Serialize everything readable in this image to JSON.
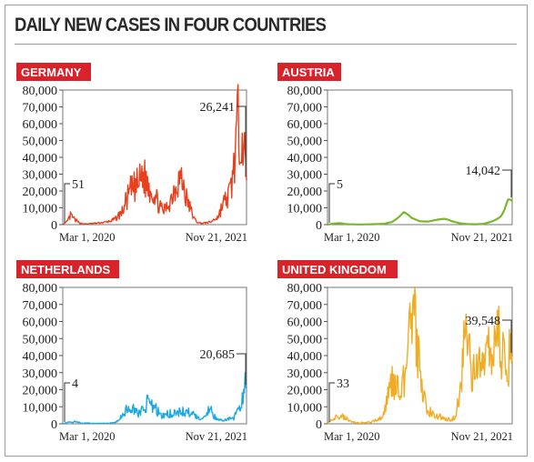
{
  "title": "DAILY NEW CASES IN FOUR COUNTRIES",
  "colors": {
    "label_bg": "#d8232a",
    "label_text": "#ffffff",
    "axis": "#333333"
  },
  "chart_data": [
    {
      "type": "line",
      "label": "GERMANY",
      "color": "#e8401c",
      "x_start": "Mar 1, 2020",
      "x_end": "Nov 21, 2021",
      "y_ticks": [
        "80,000",
        "70,000",
        "60,000",
        "50,000",
        "40,000",
        "30,000",
        "20,000",
        "10,000",
        "0"
      ],
      "ylim": [
        0,
        80000
      ],
      "noisy": true,
      "start_annotation": "51",
      "end_annotation": "26,241",
      "x_week": [
        0,
        2,
        4,
        6,
        8,
        10,
        12,
        14,
        18,
        22,
        26,
        30,
        32,
        34,
        36,
        38,
        40,
        42,
        44,
        46,
        48,
        50,
        52,
        54,
        56,
        58,
        60,
        62,
        64,
        66,
        68,
        70,
        74,
        78,
        80,
        82,
        84,
        85,
        86,
        87,
        88,
        89,
        90,
        91,
        92
      ],
      "y_cases": [
        51,
        1500,
        5500,
        3000,
        1200,
        500,
        400,
        600,
        1000,
        1500,
        3000,
        8000,
        15000,
        20000,
        22000,
        24000,
        30000,
        25000,
        22000,
        18000,
        12000,
        8000,
        10000,
        15000,
        22000,
        28000,
        25000,
        15000,
        9000,
        3000,
        1000,
        800,
        1500,
        5000,
        12000,
        15000,
        20000,
        28000,
        40000,
        50000,
        60000,
        68000,
        55000,
        40000,
        26241
      ]
    },
    {
      "type": "line",
      "label": "AUSTRIA",
      "color": "#7ab62c",
      "x_start": "Mar 1, 2020",
      "x_end": "Nov 21, 2021",
      "y_ticks": [
        "80,000",
        "70,000",
        "60,000",
        "50,000",
        "40,000",
        "30,000",
        "20,000",
        "10,000",
        "0"
      ],
      "ylim": [
        0,
        80000
      ],
      "noisy": false,
      "start_annotation": "5",
      "end_annotation": "14,042",
      "x_week": [
        0,
        3,
        6,
        10,
        16,
        22,
        28,
        32,
        34,
        36,
        38,
        40,
        42,
        46,
        50,
        54,
        58,
        60,
        62,
        66,
        70,
        74,
        78,
        80,
        82,
        84,
        86,
        87,
        88,
        89,
        90,
        91,
        92
      ],
      "y_cases": [
        5,
        600,
        900,
        200,
        100,
        200,
        500,
        1500,
        3000,
        5000,
        7500,
        6000,
        4000,
        2000,
        1800,
        2800,
        3500,
        3000,
        2000,
        800,
        300,
        200,
        500,
        1200,
        2000,
        3000,
        4500,
        6000,
        8500,
        12000,
        15000,
        15000,
        14042
      ]
    },
    {
      "type": "line",
      "label": "NETHERLANDS",
      "color": "#1da9e0",
      "x_start": "Mar 1, 2020",
      "x_end": "Nov 21, 2021",
      "y_ticks": [
        "80,000",
        "70,000",
        "60,000",
        "50,000",
        "40,000",
        "30,000",
        "20,000",
        "10,000",
        "0"
      ],
      "ylim": [
        0,
        80000
      ],
      "noisy": true,
      "start_annotation": "4",
      "end_annotation": "20,685",
      "x_week": [
        0,
        3,
        6,
        10,
        16,
        22,
        26,
        28,
        30,
        32,
        34,
        36,
        38,
        40,
        42,
        46,
        50,
        54,
        58,
        62,
        66,
        70,
        72,
        74,
        76,
        78,
        82,
        86,
        88,
        89,
        90,
        91,
        92
      ],
      "y_cases": [
        4,
        1000,
        1200,
        500,
        200,
        300,
        800,
        2000,
        5000,
        8000,
        10000,
        7000,
        6000,
        8000,
        12000,
        9000,
        5000,
        6000,
        7000,
        7000,
        5000,
        2000,
        6000,
        9500,
        4000,
        2000,
        2500,
        4000,
        8000,
        12000,
        18000,
        23000,
        20685
      ]
    },
    {
      "type": "line",
      "label": "UNITED KINGDOM",
      "color": "#f2ac24",
      "x_start": "Mar 1, 2020",
      "x_end": "Nov 21, 2021",
      "y_ticks": [
        "80,000",
        "70,000",
        "60,000",
        "50,000",
        "40,000",
        "30,000",
        "20,000",
        "10,000",
        "0"
      ],
      "ylim": [
        0,
        80000
      ],
      "noisy": true,
      "start_annotation": "33",
      "end_annotation": "39,548",
      "x_week": [
        0,
        3,
        6,
        8,
        12,
        16,
        22,
        26,
        28,
        30,
        32,
        34,
        36,
        38,
        40,
        42,
        43,
        44,
        46,
        48,
        50,
        54,
        58,
        62,
        64,
        66,
        68,
        70,
        72,
        74,
        76,
        78,
        80,
        82,
        84,
        86,
        88,
        90,
        92
      ],
      "y_cases": [
        33,
        3000,
        5000,
        4000,
        1000,
        600,
        1000,
        3000,
        7000,
        15000,
        25000,
        24000,
        18000,
        25000,
        40000,
        58000,
        68000,
        50000,
        30000,
        15000,
        8000,
        5000,
        3000,
        2500,
        5000,
        20000,
        48000,
        55000,
        28000,
        30000,
        35000,
        32000,
        40000,
        38000,
        45000,
        50000,
        42000,
        38000,
        39548
      ]
    }
  ]
}
